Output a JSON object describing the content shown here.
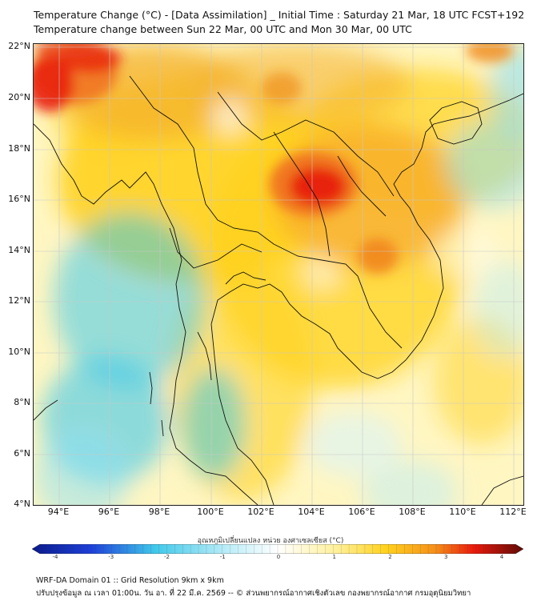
{
  "title": "Temperature Change (°C) - [Data Assimilation] _ Initial Time : Saturday 21 Mar, 18 UTC FCST+192",
  "subtitle": "Temperature change between Sun 22 Mar, 00 UTC and Mon 30 Mar, 00 UTC",
  "lat_labels": [
    "22°N",
    "20°N",
    "18°N",
    "16°N",
    "14°N",
    "12°N",
    "10°N",
    "8°N",
    "6°N",
    "4°N"
  ],
  "lon_labels": [
    "94°E",
    "96°E",
    "98°E",
    "100°E",
    "102°E",
    "104°E",
    "106°E",
    "108°E",
    "110°E",
    "112°E"
  ],
  "colorbar": {
    "title": "อุณหภูมิเปลี่ยนแปลง หน่วย องศาเซลเซียส (°C)",
    "ticks": [
      "-4",
      "-3",
      "-2",
      "-1",
      "0",
      "1",
      "2",
      "3",
      "4"
    ],
    "range": [
      -4,
      4
    ]
  },
  "footer_line1": "WRF-DA Domain 01 :: Grid Resolution 9km x 9km",
  "footer_line2": "ปรับปรุงข้อมูล ณ เวลา 01:00น. วัน อา. ที่ 22 มี.ค. 2569 -- © ส่วนพยากรณ์อากาศเชิงตัวเลข กองพยากรณ์อากาศ กรมอุตุนิยมวิทยา",
  "colors": {
    "cold_min": "#0a1a8c",
    "cool": "#40c8ea",
    "neutral": "#ffffff",
    "warm": "#ffd21e",
    "hot": "#e81a0c",
    "hot_max": "#5e0a06",
    "coastline": "#111111"
  }
}
